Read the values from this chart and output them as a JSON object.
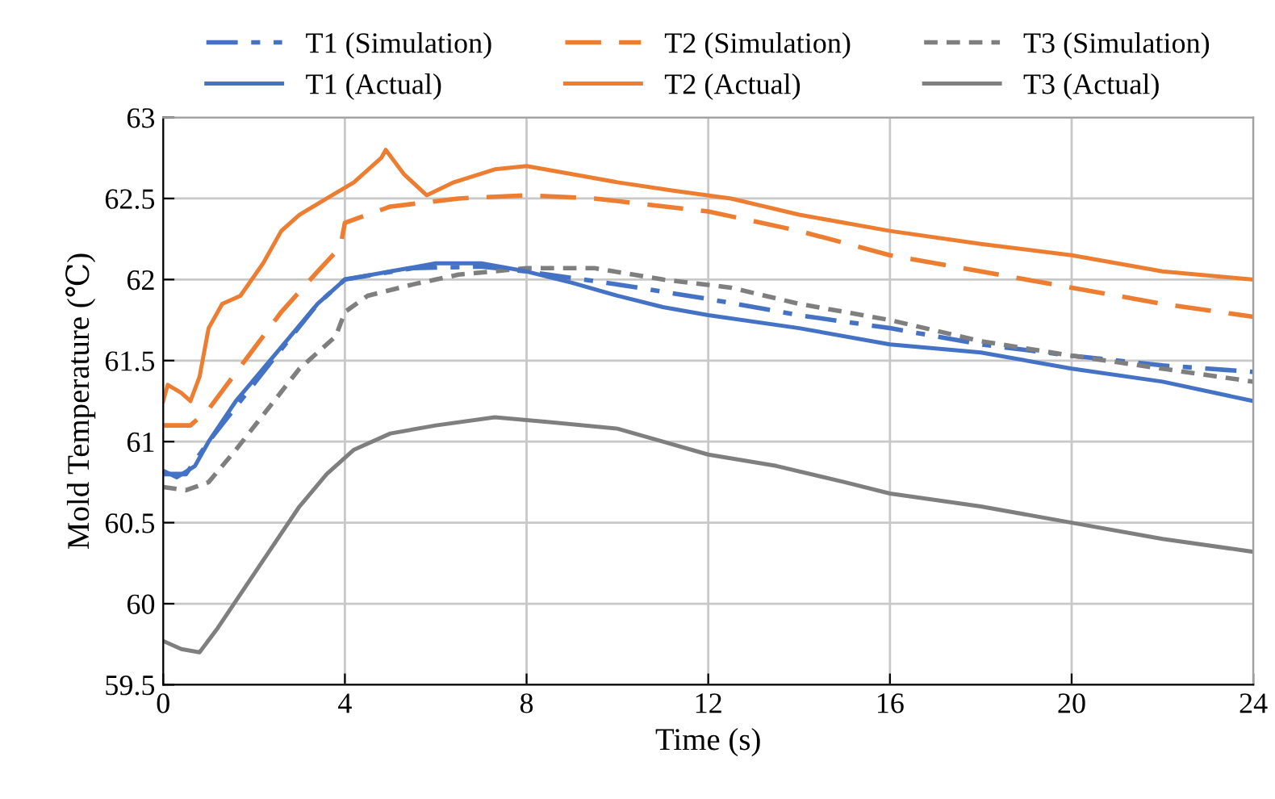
{
  "chart_data": {
    "type": "line",
    "xlabel": "Time (s)",
    "ylabel": "Mold Temperature (℃)",
    "xlim": [
      0,
      24
    ],
    "xticks": [
      0,
      4,
      8,
      12,
      16,
      20,
      24
    ],
    "ylim": [
      59.5,
      63
    ],
    "yticks": [
      59.5,
      60,
      60.5,
      61,
      61.5,
      62,
      62.5,
      63
    ],
    "grid": true,
    "legend": "top",
    "marker": "none",
    "series": [
      {
        "name": "T1 (Simulation)",
        "color": "#4472c4",
        "line_style": "dashdot",
        "x": [
          0,
          0.5,
          1.0,
          2.4,
          3.4,
          4,
          5.5,
          7,
          8,
          10,
          12,
          14,
          16,
          18,
          20,
          22,
          24
        ],
        "values": [
          60.8,
          60.8,
          61.0,
          61.5,
          61.85,
          62.0,
          62.07,
          62.08,
          62.05,
          61.97,
          61.88,
          61.78,
          61.7,
          61.6,
          61.53,
          61.47,
          61.43
        ]
      },
      {
        "name": "T2 (Simulation)",
        "color": "#ed7d31",
        "line_style": "dashed",
        "x": [
          0,
          0.6,
          1.0,
          1.8,
          2.6,
          3.4,
          3.9,
          4.0,
          5,
          6.5,
          8,
          9.5,
          12,
          14,
          16,
          18,
          20,
          22,
          24
        ],
        "values": [
          61.1,
          61.1,
          61.2,
          61.5,
          61.8,
          62.05,
          62.2,
          62.35,
          62.45,
          62.5,
          62.52,
          62.5,
          62.42,
          62.3,
          62.15,
          62.05,
          61.95,
          61.85,
          61.77
        ]
      },
      {
        "name": "T3 (Simulation)",
        "color": "#7f7f7f",
        "line_style": "dotted",
        "x": [
          0,
          0.5,
          1,
          1.6,
          2.3,
          3.0,
          3.8,
          4.0,
          4.5,
          5.5,
          6.5,
          8,
          9.5,
          11,
          12.5,
          14,
          16,
          18,
          20,
          22,
          24
        ],
        "values": [
          60.72,
          60.7,
          60.75,
          60.95,
          61.2,
          61.45,
          61.65,
          61.8,
          61.9,
          61.97,
          62.03,
          62.07,
          62.07,
          62.0,
          61.95,
          61.85,
          61.75,
          61.62,
          61.53,
          61.45,
          61.37
        ]
      },
      {
        "name": "T1 (Actual)",
        "color": "#4472c4",
        "line_style": "solid",
        "x": [
          0,
          0.3,
          0.7,
          1.0,
          1.6,
          2.2,
          2.8,
          3.4,
          4.0,
          5,
          6,
          7,
          8,
          9,
          10,
          11,
          12,
          14,
          16,
          18,
          20,
          22,
          24
        ],
        "values": [
          60.82,
          60.78,
          60.85,
          61.0,
          61.25,
          61.45,
          61.65,
          61.85,
          62.0,
          62.05,
          62.1,
          62.1,
          62.05,
          61.98,
          61.9,
          61.83,
          61.78,
          61.7,
          61.6,
          61.55,
          61.45,
          61.37,
          61.25
        ]
      },
      {
        "name": "T2 (Actual)",
        "color": "#ed7d31",
        "line_style": "solid",
        "x": [
          0,
          0.1,
          0.4,
          0.6,
          0.8,
          1.0,
          1.3,
          1.7,
          2.2,
          2.6,
          3,
          3.6,
          4.2,
          4.8,
          4.9,
          5.3,
          5.8,
          6.4,
          7.3,
          8,
          9,
          10,
          11.2,
          12.5,
          14,
          16,
          18,
          20,
          22,
          24
        ],
        "values": [
          61.25,
          61.35,
          61.3,
          61.25,
          61.4,
          61.7,
          61.85,
          61.9,
          62.1,
          62.3,
          62.4,
          62.5,
          62.6,
          62.75,
          62.8,
          62.65,
          62.52,
          62.6,
          62.68,
          62.7,
          62.65,
          62.6,
          62.55,
          62.5,
          62.4,
          62.3,
          62.22,
          62.15,
          62.05,
          62.0
        ]
      },
      {
        "name": "T3 (Actual)",
        "color": "#7f7f7f",
        "line_style": "solid",
        "x": [
          0,
          0.4,
          0.8,
          1.2,
          1.8,
          2.4,
          3.0,
          3.6,
          4.2,
          5,
          6,
          7.3,
          8.5,
          10,
          11,
          12,
          13.5,
          15,
          16,
          18,
          20,
          22,
          24
        ],
        "values": [
          59.77,
          59.72,
          59.7,
          59.85,
          60.1,
          60.35,
          60.6,
          60.8,
          60.95,
          61.05,
          61.1,
          61.15,
          61.12,
          61.08,
          61.0,
          60.92,
          60.85,
          60.75,
          60.68,
          60.6,
          60.5,
          60.4,
          60.32
        ]
      }
    ]
  }
}
